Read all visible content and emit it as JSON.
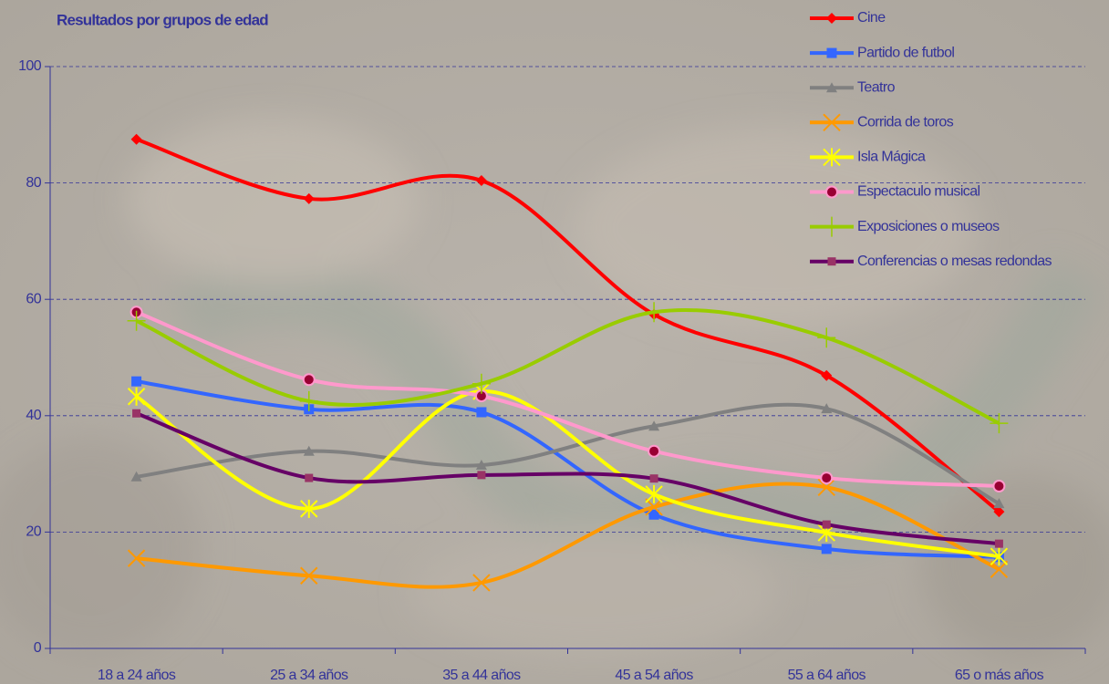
{
  "chart_data": {
    "type": "line",
    "title": "Resultados por grupos de edad",
    "categories": [
      "18 a 24 años",
      "25 a 34 años",
      "35 a 44 años",
      "45 a 54 años",
      "55 a 64 años",
      "65 o más años"
    ],
    "ylim": [
      0,
      100
    ],
    "yticks": [
      0,
      20,
      40,
      60,
      80,
      100
    ],
    "grid": true,
    "smooth": true,
    "legend": "top-right",
    "series": [
      {
        "name": "Cine",
        "color": "#ff0000",
        "marker": "diamond",
        "values": [
          87.5,
          77.3,
          80.4,
          57.4,
          46.9,
          23.5
        ]
      },
      {
        "name": "Partido de futbol",
        "color": "#3366ff",
        "marker": "square",
        "values": [
          45.9,
          41.1,
          40.6,
          23,
          17.1,
          15.7
        ]
      },
      {
        "name": "Teatro",
        "color": "#808080",
        "marker": "triangle",
        "values": [
          29.5,
          33.9,
          31.5,
          38.2,
          41.2,
          24.9
        ]
      },
      {
        "name": "Corrida de toros",
        "color": "#ff9900",
        "marker": "x",
        "values": [
          15.5,
          12.5,
          11.3,
          24.3,
          27.7,
          13.6
        ]
      },
      {
        "name": "Isla Mágica",
        "color": "#ffff00",
        "marker": "star",
        "values": [
          43.3,
          24,
          44.2,
          26.5,
          19.9,
          15.8
        ]
      },
      {
        "name": "Espectaculo musical",
        "color": "#ff99cc",
        "marker": "circle",
        "values": [
          57.8,
          46.2,
          43.4,
          33.9,
          29.3,
          27.9
        ]
      },
      {
        "name": "Exposiciones o museos",
        "color": "#99cc00",
        "marker": "plus",
        "values": [
          56.3,
          42.5,
          45.5,
          57.8,
          53.4,
          38.7
        ]
      },
      {
        "name": "Conferencias o mesas redondas",
        "color": "#660066",
        "marker": "smallsquare",
        "values": [
          40.4,
          29.3,
          29.8,
          29.2,
          21.3,
          18
        ]
      }
    ]
  }
}
